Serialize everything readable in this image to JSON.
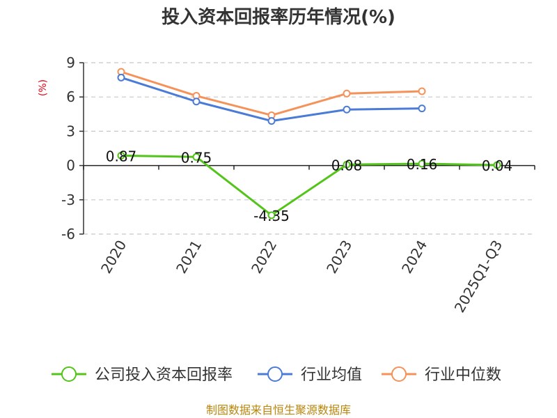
{
  "chart_data": {
    "type": "line",
    "title": "投入资本回报率历年情况(%)",
    "ylabel": "(%)",
    "xlabel": "",
    "categories": [
      "2020",
      "2021",
      "2022",
      "2023",
      "2024",
      "2025Q1-Q3"
    ],
    "ylim": [
      -6,
      9
    ],
    "yticks": [
      9,
      6,
      3,
      0,
      -3,
      -6
    ],
    "grid": true,
    "legend_position": "bottom",
    "series": [
      {
        "name": "公司投入资本回报率",
        "color": "#52c41a",
        "values": [
          0.87,
          0.75,
          -4.35,
          0.08,
          0.16,
          0.04
        ],
        "labels": [
          "0.87",
          "0.75",
          "-4.35",
          "0.08",
          "0.16",
          "0.04"
        ]
      },
      {
        "name": "行业均值",
        "color": "#4a7bd6",
        "values": [
          7.7,
          5.6,
          3.9,
          4.9,
          5.0,
          null
        ]
      },
      {
        "name": "行业中位数",
        "color": "#f5925a",
        "values": [
          8.2,
          6.1,
          4.4,
          6.3,
          6.5,
          null
        ]
      }
    ]
  },
  "footer": {
    "source": "制图数据来自恒生聚源数据库"
  }
}
